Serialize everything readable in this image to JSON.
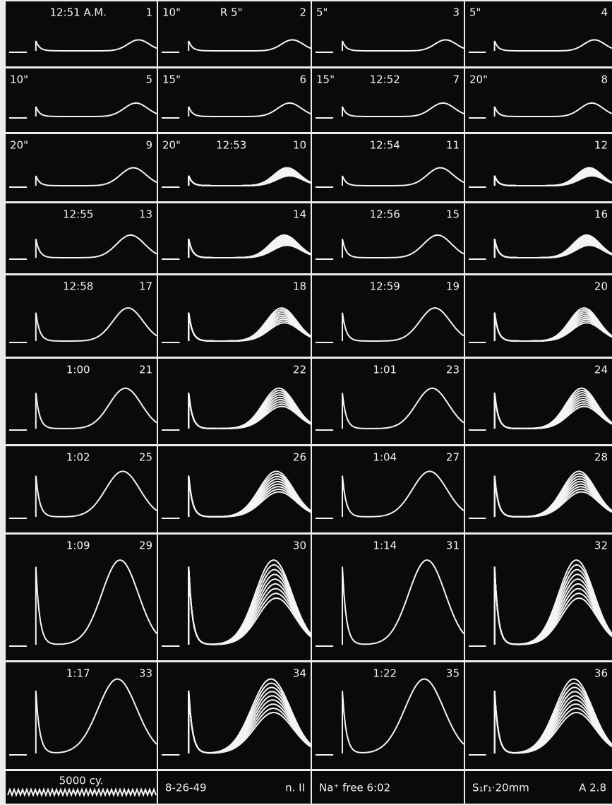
{
  "panels": [
    {
      "label": "12:51 A.M.",
      "number": "1"
    },
    {
      "time": "10\"",
      "label": "R 5\"",
      "number": "2"
    },
    {
      "time": "5\"",
      "number": "3"
    },
    {
      "time": "5\"",
      "number": "4"
    },
    {
      "time": "10\"",
      "number": "5"
    },
    {
      "time": "15\"",
      "number": "6"
    },
    {
      "time": "15\"",
      "label": "12:52",
      "number": "7"
    },
    {
      "time": "20\"",
      "number": "8"
    },
    {
      "time": "20\"",
      "number": "9"
    },
    {
      "time": "20\"",
      "label": "12:53",
      "number": "10"
    },
    {
      "label": "12:54",
      "number": "11"
    },
    {
      "number": "12"
    },
    {
      "label": "12:55",
      "number": "13"
    },
    {
      "number": "14"
    },
    {
      "label": "12:56",
      "number": "15"
    },
    {
      "number": "16"
    },
    {
      "label": "12:58",
      "number": "17"
    },
    {
      "number": "18"
    },
    {
      "label": "12:59",
      "number": "19"
    },
    {
      "number": "20"
    },
    {
      "label": "1:00",
      "number": "21"
    },
    {
      "number": "22"
    },
    {
      "label": "1:01",
      "number": "23"
    },
    {
      "number": "24"
    },
    {
      "label": "1:02",
      "number": "25"
    },
    {
      "number": "26"
    },
    {
      "label": "1:04",
      "number": "27"
    },
    {
      "number": "28"
    },
    {
      "label": "1:09",
      "number": "29"
    },
    {
      "number": "30"
    },
    {
      "label": "1:14",
      "number": "31"
    },
    {
      "number": "32"
    },
    {
      "label": "1:17",
      "number": "33"
    },
    {
      "number": "34"
    },
    {
      "label": "1:22",
      "number": "35"
    },
    {
      "number": "36"
    }
  ],
  "footer": [
    {
      "texts": [
        "5000 cy."
      ]
    },
    {
      "texts": [
        "8-26-49",
        "n. II"
      ]
    },
    {
      "texts": [
        "Na⁺ free 6:02"
      ]
    },
    {
      "texts": [
        "S₁r₁·20mm",
        "A 2.8"
      ]
    }
  ]
}
